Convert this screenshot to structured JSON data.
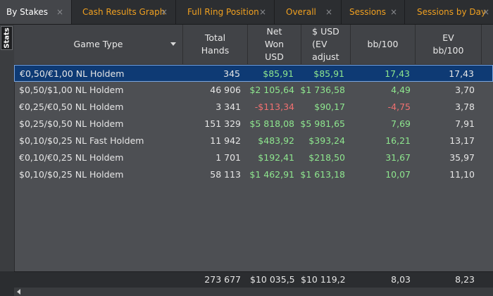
{
  "tabs": [
    {
      "label": "By Stakes",
      "active": true
    },
    {
      "label": "Cash Results Graph",
      "active": false
    },
    {
      "label": "Full Ring Position",
      "active": false
    },
    {
      "label": "Overall",
      "active": false
    },
    {
      "label": "Sessions",
      "active": false
    },
    {
      "label": "Sessions by Day",
      "active": false
    }
  ],
  "close_glyph": "×",
  "stats_label": "Stats",
  "columns": [
    {
      "label": "Game Type"
    },
    {
      "label": "Total\nHands"
    },
    {
      "label": "Net\nWon\nUSD"
    },
    {
      "label": "$ USD\n(EV\nadjust"
    },
    {
      "label": "bb/100"
    },
    {
      "label": "EV\nbb/100"
    }
  ],
  "rows": [
    {
      "game": "€0,50/€1,00 NL Holdem",
      "hands": "345",
      "net": "$85,91",
      "net_sign": "pos",
      "ev": "$85,91",
      "bb": "17,43",
      "bb_sign": "pos",
      "evbb": "17,43",
      "selected": true
    },
    {
      "game": "$0,50/$1,00 NL Holdem",
      "hands": "46 906",
      "net": "$2 105,64",
      "net_sign": "pos",
      "ev": "$1 736,58",
      "bb": "4,49",
      "bb_sign": "pos",
      "evbb": "3,70",
      "selected": false
    },
    {
      "game": "€0,25/€0,50 NL Holdem",
      "hands": "3 341",
      "net": "-$113,34",
      "net_sign": "neg",
      "ev": "$90,17",
      "bb": "-4,75",
      "bb_sign": "neg",
      "evbb": "3,78",
      "selected": false
    },
    {
      "game": "$0,25/$0,50 NL Holdem",
      "hands": "151 329",
      "net": "$5 818,08",
      "net_sign": "pos",
      "ev": "$5 981,65",
      "bb": "7,69",
      "bb_sign": "pos",
      "evbb": "7,91",
      "selected": false
    },
    {
      "game": "$0,10/$0,25 NL Fast Holdem",
      "hands": "11 942",
      "net": "$483,92",
      "net_sign": "pos",
      "ev": "$393,24",
      "bb": "16,21",
      "bb_sign": "pos",
      "evbb": "13,17",
      "selected": false
    },
    {
      "game": "€0,10/€0,25 NL Holdem",
      "hands": "1 701",
      "net": "$192,41",
      "net_sign": "pos",
      "ev": "$218,50",
      "bb": "31,67",
      "bb_sign": "pos",
      "evbb": "35,97",
      "selected": false
    },
    {
      "game": "$0,10/$0,25 NL Holdem",
      "hands": "58 113",
      "net": "$1 462,91",
      "net_sign": "pos",
      "ev": "$1 613,18",
      "bb": "10,07",
      "bb_sign": "pos",
      "evbb": "11,10",
      "selected": false
    }
  ],
  "totals": {
    "hands": "273 677",
    "net": "$10 035,5",
    "ev": "$10 119,2",
    "bb": "8,03",
    "evbb": "8,23"
  }
}
